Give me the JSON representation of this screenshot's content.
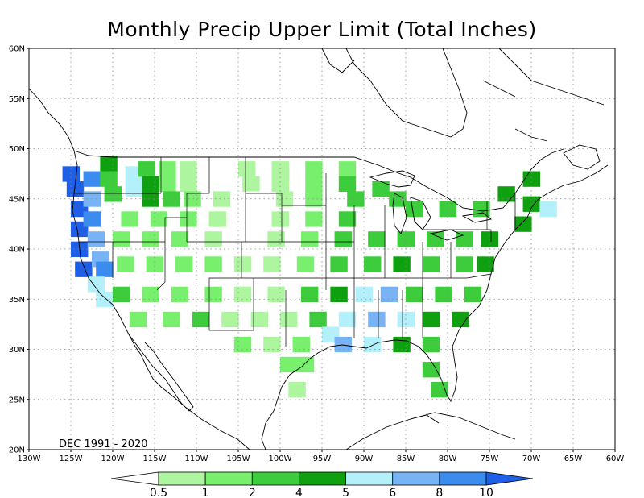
{
  "title": "Monthly Precip Upper Limit (Total Inches)",
  "period": "DEC 1991 - 2020",
  "lat_labels": [
    "60N",
    "55N",
    "50N",
    "45N",
    "40N",
    "35N",
    "30N",
    "25N",
    "20N"
  ],
  "lon_labels": [
    "130W",
    "125W",
    "120W",
    "115W",
    "110W",
    "105W",
    "100W",
    "95W",
    "90W",
    "85W",
    "80W",
    "75W",
    "70W",
    "65W",
    "60W"
  ],
  "legend": {
    "thresholds": [
      "0.5",
      "1",
      "2",
      "4",
      "5",
      "6",
      "8",
      "10"
    ],
    "colors": [
      "#ffffff",
      "#aef5a0",
      "#78f06e",
      "#3ccc3c",
      "#0fa00f",
      "#b3f0fa",
      "#78b4f5",
      "#3c8cf0",
      "#1e5fe6"
    ]
  },
  "grid_cells": [
    {
      "lat": 47.5,
      "lon": -125,
      "cls": 8
    },
    {
      "lat": 46,
      "lon": -124.5,
      "cls": 8
    },
    {
      "lat": 44,
      "lon": -124,
      "cls": 8
    },
    {
      "lat": 42,
      "lon": -124,
      "cls": 8
    },
    {
      "lat": 40,
      "lon": -124,
      "cls": 8
    },
    {
      "lat": 38,
      "lon": -123.5,
      "cls": 8
    },
    {
      "lat": 47,
      "lon": -122.5,
      "cls": 7
    },
    {
      "lat": 45,
      "lon": -122.5,
      "cls": 6
    },
    {
      "lat": 43,
      "lon": -122.5,
      "cls": 7
    },
    {
      "lat": 41,
      "lon": -122,
      "cls": 6
    },
    {
      "lat": 39,
      "lon": -121.5,
      "cls": 6
    },
    {
      "lat": 38,
      "lon": -121,
      "cls": 7
    },
    {
      "lat": 36.5,
      "lon": -122,
      "cls": 5
    },
    {
      "lat": 35,
      "lon": -121,
      "cls": 5
    },
    {
      "lat": 48.5,
      "lon": -120.5,
      "cls": 4
    },
    {
      "lat": 47,
      "lon": -120.5,
      "cls": 3
    },
    {
      "lat": 45.5,
      "lon": -120,
      "cls": 3
    },
    {
      "lat": 47.5,
      "lon": -117.5,
      "cls": 5
    },
    {
      "lat": 46,
      "lon": -117.5,
      "cls": 5
    },
    {
      "lat": 48,
      "lon": -116,
      "cls": 3
    },
    {
      "lat": 46.5,
      "lon": -115.5,
      "cls": 4
    },
    {
      "lat": 45,
      "lon": -115.5,
      "cls": 4
    },
    {
      "lat": 48,
      "lon": -113.5,
      "cls": 2
    },
    {
      "lat": 46.5,
      "lon": -113.5,
      "cls": 2
    },
    {
      "lat": 45,
      "lon": -113,
      "cls": 3
    },
    {
      "lat": 48,
      "lon": -111,
      "cls": 1
    },
    {
      "lat": 46.5,
      "lon": -111,
      "cls": 1
    },
    {
      "lat": 45,
      "lon": -110.5,
      "cls": 2
    },
    {
      "lat": 48,
      "lon": -107.5,
      "cls": 0
    },
    {
      "lat": 46.5,
      "lon": -107,
      "cls": 0
    },
    {
      "lat": 45,
      "lon": -107,
      "cls": 1
    },
    {
      "lat": 48,
      "lon": -104,
      "cls": 1
    },
    {
      "lat": 46.5,
      "lon": -103.5,
      "cls": 1
    },
    {
      "lat": 45,
      "lon": -103,
      "cls": 0
    },
    {
      "lat": 48,
      "lon": -100,
      "cls": 1
    },
    {
      "lat": 46.5,
      "lon": -100,
      "cls": 1
    },
    {
      "lat": 45,
      "lon": -99.5,
      "cls": 1
    },
    {
      "lat": 48,
      "lon": -96,
      "cls": 2
    },
    {
      "lat": 46.5,
      "lon": -96,
      "cls": 2
    },
    {
      "lat": 45,
      "lon": -96,
      "cls": 2
    },
    {
      "lat": 48,
      "lon": -92,
      "cls": 2
    },
    {
      "lat": 46.5,
      "lon": -92,
      "cls": 3
    },
    {
      "lat": 45,
      "lon": -91,
      "cls": 3
    },
    {
      "lat": 46,
      "lon": -88,
      "cls": 3
    },
    {
      "lat": 45,
      "lon": -86,
      "cls": 3
    },
    {
      "lat": 44,
      "lon": -84,
      "cls": 3
    },
    {
      "lat": 44,
      "lon": -80,
      "cls": 3
    },
    {
      "lat": 44,
      "lon": -76,
      "cls": 3
    },
    {
      "lat": 45.5,
      "lon": -73,
      "cls": 4
    },
    {
      "lat": 47,
      "lon": -70,
      "cls": 4
    },
    {
      "lat": 44.5,
      "lon": -70,
      "cls": 4
    },
    {
      "lat": 44,
      "lon": -68,
      "cls": 5
    },
    {
      "lat": 42.5,
      "lon": -71,
      "cls": 4
    },
    {
      "lat": 43,
      "lon": -118,
      "cls": 2
    },
    {
      "lat": 43,
      "lon": -114.5,
      "cls": 2
    },
    {
      "lat": 43,
      "lon": -111,
      "cls": 2
    },
    {
      "lat": 43,
      "lon": -107.5,
      "cls": 1
    },
    {
      "lat": 43,
      "lon": -104,
      "cls": 0
    },
    {
      "lat": 43,
      "lon": -100,
      "cls": 1
    },
    {
      "lat": 43,
      "lon": -96,
      "cls": 2
    },
    {
      "lat": 43,
      "lon": -92,
      "cls": 3
    },
    {
      "lat": 41,
      "lon": -119,
      "cls": 2
    },
    {
      "lat": 41,
      "lon": -115.5,
      "cls": 2
    },
    {
      "lat": 41,
      "lon": -112,
      "cls": 2
    },
    {
      "lat": 41,
      "lon": -108,
      "cls": 1
    },
    {
      "lat": 40.5,
      "lon": -104.5,
      "cls": 0
    },
    {
      "lat": 41,
      "lon": -100.5,
      "cls": 1
    },
    {
      "lat": 41,
      "lon": -96.5,
      "cls": 2
    },
    {
      "lat": 41,
      "lon": -92.5,
      "cls": 3
    },
    {
      "lat": 41,
      "lon": -88.5,
      "cls": 3
    },
    {
      "lat": 41,
      "lon": -85,
      "cls": 3
    },
    {
      "lat": 41,
      "lon": -81.5,
      "cls": 3
    },
    {
      "lat": 41,
      "lon": -78,
      "cls": 3
    },
    {
      "lat": 41,
      "lon": -75,
      "cls": 4
    },
    {
      "lat": 38.5,
      "lon": -118.5,
      "cls": 2
    },
    {
      "lat": 38.5,
      "lon": -115,
      "cls": 2
    },
    {
      "lat": 38.5,
      "lon": -111.5,
      "cls": 2
    },
    {
      "lat": 38.5,
      "lon": -108,
      "cls": 2
    },
    {
      "lat": 38.5,
      "lon": -104.5,
      "cls": 1
    },
    {
      "lat": 38.5,
      "lon": -101,
      "cls": 1
    },
    {
      "lat": 38.5,
      "lon": -97,
      "cls": 2
    },
    {
      "lat": 38.5,
      "lon": -93,
      "cls": 3
    },
    {
      "lat": 38.5,
      "lon": -89,
      "cls": 3
    },
    {
      "lat": 38.5,
      "lon": -85.5,
      "cls": 4
    },
    {
      "lat": 38.5,
      "lon": -82,
      "cls": 3
    },
    {
      "lat": 38.5,
      "lon": -78,
      "cls": 3
    },
    {
      "lat": 38.5,
      "lon": -75.5,
      "cls": 4
    },
    {
      "lat": 35.5,
      "lon": -119,
      "cls": 3
    },
    {
      "lat": 35.5,
      "lon": -115.5,
      "cls": 2
    },
    {
      "lat": 35.5,
      "lon": -112,
      "cls": 2
    },
    {
      "lat": 35.5,
      "lon": -108,
      "cls": 2
    },
    {
      "lat": 35.5,
      "lon": -104.5,
      "cls": 1
    },
    {
      "lat": 35.5,
      "lon": -100.5,
      "cls": 1
    },
    {
      "lat": 35.5,
      "lon": -96.5,
      "cls": 3
    },
    {
      "lat": 35.5,
      "lon": -93,
      "cls": 4
    },
    {
      "lat": 35.5,
      "lon": -90,
      "cls": 5
    },
    {
      "lat": 35.5,
      "lon": -87,
      "cls": 6
    },
    {
      "lat": 35.5,
      "lon": -84,
      "cls": 3
    },
    {
      "lat": 35.5,
      "lon": -80.5,
      "cls": 3
    },
    {
      "lat": 35.5,
      "lon": -77,
      "cls": 3
    },
    {
      "lat": 33,
      "lon": -117,
      "cls": 2
    },
    {
      "lat": 33,
      "lon": -113,
      "cls": 2
    },
    {
      "lat": 33,
      "lon": -109.5,
      "cls": 3
    },
    {
      "lat": 33,
      "lon": -106,
      "cls": 1
    },
    {
      "lat": 33,
      "lon": -102.5,
      "cls": 1
    },
    {
      "lat": 33,
      "lon": -99,
      "cls": 1
    },
    {
      "lat": 33,
      "lon": -95.5,
      "cls": 3
    },
    {
      "lat": 33,
      "lon": -92,
      "cls": 5
    },
    {
      "lat": 33,
      "lon": -88.5,
      "cls": 6
    },
    {
      "lat": 33,
      "lon": -85,
      "cls": 5
    },
    {
      "lat": 33,
      "lon": -82,
      "cls": 4
    },
    {
      "lat": 33,
      "lon": -78.5,
      "cls": 4
    },
    {
      "lat": 30.5,
      "lon": -104.5,
      "cls": 2
    },
    {
      "lat": 30.5,
      "lon": -101,
      "cls": 1
    },
    {
      "lat": 30.5,
      "lon": -97.5,
      "cls": 2
    },
    {
      "lat": 31.5,
      "lon": -94,
      "cls": 5
    },
    {
      "lat": 30.5,
      "lon": -92.5,
      "cls": 6
    },
    {
      "lat": 30.5,
      "lon": -89,
      "cls": 5
    },
    {
      "lat": 30.5,
      "lon": -85.5,
      "cls": 4
    },
    {
      "lat": 30.5,
      "lon": -82,
      "cls": 3
    },
    {
      "lat": 28.5,
      "lon": -99,
      "cls": 2
    },
    {
      "lat": 28.5,
      "lon": -97,
      "cls": 2
    },
    {
      "lat": 28,
      "lon": -82,
      "cls": 3
    },
    {
      "lat": 26,
      "lon": -81,
      "cls": 3
    },
    {
      "lat": 26,
      "lon": -98,
      "cls": 1
    }
  ]
}
